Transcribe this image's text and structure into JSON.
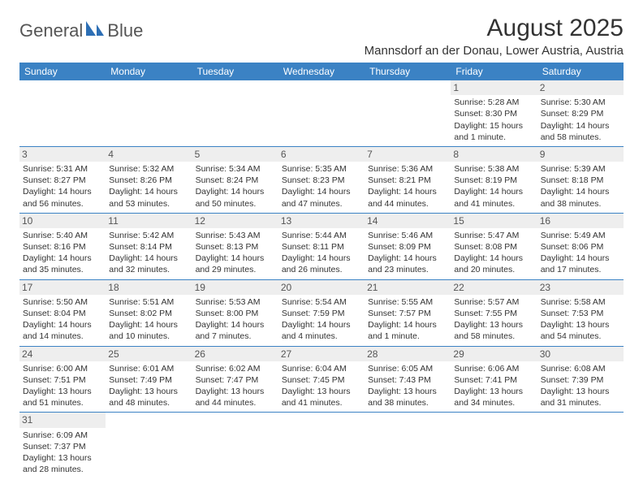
{
  "logo": {
    "text1": "General",
    "text2": "Blue"
  },
  "title": "August 2025",
  "location": "Mannsdorf an der Donau, Lower Austria, Austria",
  "colors": {
    "header_bg": "#3b82c4",
    "header_text": "#ffffff",
    "daynum_bg": "#eeeeee",
    "border": "#3b82c4",
    "logo_blue": "#2d6fb5"
  },
  "weekdays": [
    "Sunday",
    "Monday",
    "Tuesday",
    "Wednesday",
    "Thursday",
    "Friday",
    "Saturday"
  ],
  "cells": [
    {
      "blank": true
    },
    {
      "blank": true
    },
    {
      "blank": true
    },
    {
      "blank": true
    },
    {
      "blank": true
    },
    {
      "day": "1",
      "sunrise": "Sunrise: 5:28 AM",
      "sunset": "Sunset: 8:30 PM",
      "daylight": "Daylight: 15 hours and 1 minute."
    },
    {
      "day": "2",
      "sunrise": "Sunrise: 5:30 AM",
      "sunset": "Sunset: 8:29 PM",
      "daylight": "Daylight: 14 hours and 58 minutes."
    },
    {
      "day": "3",
      "sunrise": "Sunrise: 5:31 AM",
      "sunset": "Sunset: 8:27 PM",
      "daylight": "Daylight: 14 hours and 56 minutes."
    },
    {
      "day": "4",
      "sunrise": "Sunrise: 5:32 AM",
      "sunset": "Sunset: 8:26 PM",
      "daylight": "Daylight: 14 hours and 53 minutes."
    },
    {
      "day": "5",
      "sunrise": "Sunrise: 5:34 AM",
      "sunset": "Sunset: 8:24 PM",
      "daylight": "Daylight: 14 hours and 50 minutes."
    },
    {
      "day": "6",
      "sunrise": "Sunrise: 5:35 AM",
      "sunset": "Sunset: 8:23 PM",
      "daylight": "Daylight: 14 hours and 47 minutes."
    },
    {
      "day": "7",
      "sunrise": "Sunrise: 5:36 AM",
      "sunset": "Sunset: 8:21 PM",
      "daylight": "Daylight: 14 hours and 44 minutes."
    },
    {
      "day": "8",
      "sunrise": "Sunrise: 5:38 AM",
      "sunset": "Sunset: 8:19 PM",
      "daylight": "Daylight: 14 hours and 41 minutes."
    },
    {
      "day": "9",
      "sunrise": "Sunrise: 5:39 AM",
      "sunset": "Sunset: 8:18 PM",
      "daylight": "Daylight: 14 hours and 38 minutes."
    },
    {
      "day": "10",
      "sunrise": "Sunrise: 5:40 AM",
      "sunset": "Sunset: 8:16 PM",
      "daylight": "Daylight: 14 hours and 35 minutes."
    },
    {
      "day": "11",
      "sunrise": "Sunrise: 5:42 AM",
      "sunset": "Sunset: 8:14 PM",
      "daylight": "Daylight: 14 hours and 32 minutes."
    },
    {
      "day": "12",
      "sunrise": "Sunrise: 5:43 AM",
      "sunset": "Sunset: 8:13 PM",
      "daylight": "Daylight: 14 hours and 29 minutes."
    },
    {
      "day": "13",
      "sunrise": "Sunrise: 5:44 AM",
      "sunset": "Sunset: 8:11 PM",
      "daylight": "Daylight: 14 hours and 26 minutes."
    },
    {
      "day": "14",
      "sunrise": "Sunrise: 5:46 AM",
      "sunset": "Sunset: 8:09 PM",
      "daylight": "Daylight: 14 hours and 23 minutes."
    },
    {
      "day": "15",
      "sunrise": "Sunrise: 5:47 AM",
      "sunset": "Sunset: 8:08 PM",
      "daylight": "Daylight: 14 hours and 20 minutes."
    },
    {
      "day": "16",
      "sunrise": "Sunrise: 5:49 AM",
      "sunset": "Sunset: 8:06 PM",
      "daylight": "Daylight: 14 hours and 17 minutes."
    },
    {
      "day": "17",
      "sunrise": "Sunrise: 5:50 AM",
      "sunset": "Sunset: 8:04 PM",
      "daylight": "Daylight: 14 hours and 14 minutes."
    },
    {
      "day": "18",
      "sunrise": "Sunrise: 5:51 AM",
      "sunset": "Sunset: 8:02 PM",
      "daylight": "Daylight: 14 hours and 10 minutes."
    },
    {
      "day": "19",
      "sunrise": "Sunrise: 5:53 AM",
      "sunset": "Sunset: 8:00 PM",
      "daylight": "Daylight: 14 hours and 7 minutes."
    },
    {
      "day": "20",
      "sunrise": "Sunrise: 5:54 AM",
      "sunset": "Sunset: 7:59 PM",
      "daylight": "Daylight: 14 hours and 4 minutes."
    },
    {
      "day": "21",
      "sunrise": "Sunrise: 5:55 AM",
      "sunset": "Sunset: 7:57 PM",
      "daylight": "Daylight: 14 hours and 1 minute."
    },
    {
      "day": "22",
      "sunrise": "Sunrise: 5:57 AM",
      "sunset": "Sunset: 7:55 PM",
      "daylight": "Daylight: 13 hours and 58 minutes."
    },
    {
      "day": "23",
      "sunrise": "Sunrise: 5:58 AM",
      "sunset": "Sunset: 7:53 PM",
      "daylight": "Daylight: 13 hours and 54 minutes."
    },
    {
      "day": "24",
      "sunrise": "Sunrise: 6:00 AM",
      "sunset": "Sunset: 7:51 PM",
      "daylight": "Daylight: 13 hours and 51 minutes."
    },
    {
      "day": "25",
      "sunrise": "Sunrise: 6:01 AM",
      "sunset": "Sunset: 7:49 PM",
      "daylight": "Daylight: 13 hours and 48 minutes."
    },
    {
      "day": "26",
      "sunrise": "Sunrise: 6:02 AM",
      "sunset": "Sunset: 7:47 PM",
      "daylight": "Daylight: 13 hours and 44 minutes."
    },
    {
      "day": "27",
      "sunrise": "Sunrise: 6:04 AM",
      "sunset": "Sunset: 7:45 PM",
      "daylight": "Daylight: 13 hours and 41 minutes."
    },
    {
      "day": "28",
      "sunrise": "Sunrise: 6:05 AM",
      "sunset": "Sunset: 7:43 PM",
      "daylight": "Daylight: 13 hours and 38 minutes."
    },
    {
      "day": "29",
      "sunrise": "Sunrise: 6:06 AM",
      "sunset": "Sunset: 7:41 PM",
      "daylight": "Daylight: 13 hours and 34 minutes."
    },
    {
      "day": "30",
      "sunrise": "Sunrise: 6:08 AM",
      "sunset": "Sunset: 7:39 PM",
      "daylight": "Daylight: 13 hours and 31 minutes."
    },
    {
      "day": "31",
      "sunrise": "Sunrise: 6:09 AM",
      "sunset": "Sunset: 7:37 PM",
      "daylight": "Daylight: 13 hours and 28 minutes."
    },
    {
      "blank": true
    },
    {
      "blank": true
    },
    {
      "blank": true
    },
    {
      "blank": true
    },
    {
      "blank": true
    },
    {
      "blank": true
    }
  ]
}
